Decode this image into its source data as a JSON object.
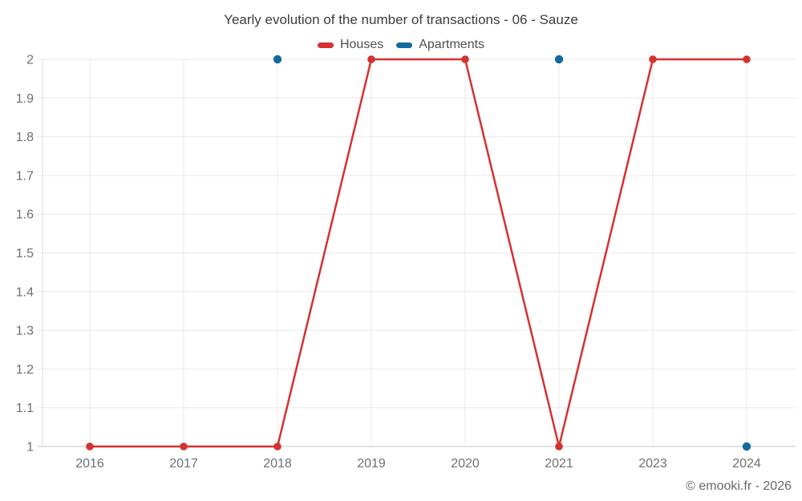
{
  "page": {
    "title": "Yearly evolution of the number of transactions - 06 - Sauze",
    "footer": "© emooki.fr - 2026"
  },
  "legend": [
    {
      "label": "Houses",
      "color": "#d5312f"
    },
    {
      "label": "Apartments",
      "color": "#146a9f"
    }
  ],
  "colors": {
    "grid": "#e9e9e9",
    "baseline": "#c6c6c6",
    "axis_edge": "#dedede",
    "tick_label": "#6f6f6f",
    "title": "#3d3d3d",
    "legend_text": "#4f4f4f",
    "footer": "#686868"
  },
  "chart_data": {
    "type": "line",
    "title": "Yearly evolution of the number of transactions - 06 - Sauze",
    "xlabel": "",
    "ylabel": "",
    "categories": [
      "2016",
      "2017",
      "2018",
      "2019",
      "2020",
      "2021",
      "2023",
      "2024"
    ],
    "series": [
      {
        "name": "Houses",
        "color": "#d5312f",
        "draw_line": true,
        "point_radius": 4.8,
        "values": [
          1,
          1,
          1,
          2,
          2,
          1,
          2,
          2
        ]
      },
      {
        "name": "Apartments",
        "color": "#146a9f",
        "draw_line": false,
        "point_radius": 5.2,
        "values": [
          null,
          null,
          2,
          null,
          null,
          2,
          null,
          1
        ]
      }
    ],
    "ylim": [
      1,
      2
    ],
    "ytick_step": 0.1,
    "ytick_labels": [
      "1",
      "1.1",
      "1.2",
      "1.3",
      "1.4",
      "1.5",
      "1.6",
      "1.7",
      "1.8",
      "1.9",
      "2"
    ],
    "grid": true,
    "legend_position": "top"
  }
}
